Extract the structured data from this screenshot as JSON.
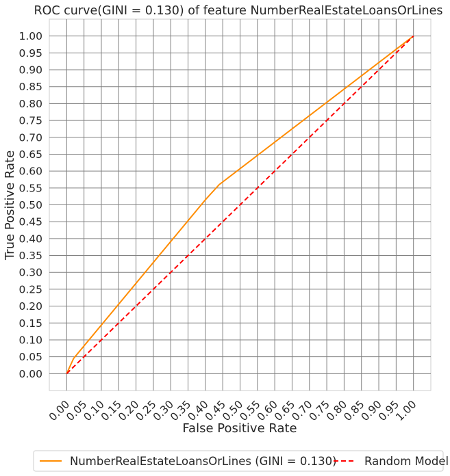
{
  "chart_data": {
    "type": "line",
    "title": "ROC curve(GINI = 0.130) of feature NumberRealEstateLoansOrLines",
    "xlabel": "False Positive Rate",
    "ylabel": "True Positive Rate",
    "xlim": [
      -0.05,
      1.05
    ],
    "ylim": [
      -0.05,
      1.05
    ],
    "grid": true,
    "x_ticks": [
      "0.00",
      "0.05",
      "0.10",
      "0.15",
      "0.20",
      "0.25",
      "0.30",
      "0.35",
      "0.40",
      "0.45",
      "0.50",
      "0.55",
      "0.60",
      "0.65",
      "0.70",
      "0.75",
      "0.80",
      "0.85",
      "0.90",
      "0.95",
      "1.00"
    ],
    "y_ticks": [
      "0.00",
      "0.05",
      "0.10",
      "0.15",
      "0.20",
      "0.25",
      "0.30",
      "0.35",
      "0.40",
      "0.45",
      "0.50",
      "0.55",
      "0.60",
      "0.65",
      "0.70",
      "0.75",
      "0.80",
      "0.85",
      "0.90",
      "0.95",
      "1.00"
    ],
    "series": [
      {
        "name": "NumberRealEstateLoansOrLines (GINI = 0.130)",
        "color": "#ff8c00",
        "style": "solid",
        "x": [
          0.0,
          0.02,
          0.4,
          0.44,
          1.0
        ],
        "y": [
          0.0,
          0.045,
          0.515,
          0.56,
          1.0
        ]
      },
      {
        "name": "Random Model",
        "color": "#ff0000",
        "style": "dashed",
        "x": [
          0.0,
          1.0
        ],
        "y": [
          0.0,
          1.0
        ]
      }
    ],
    "legend_position": "bottom"
  }
}
